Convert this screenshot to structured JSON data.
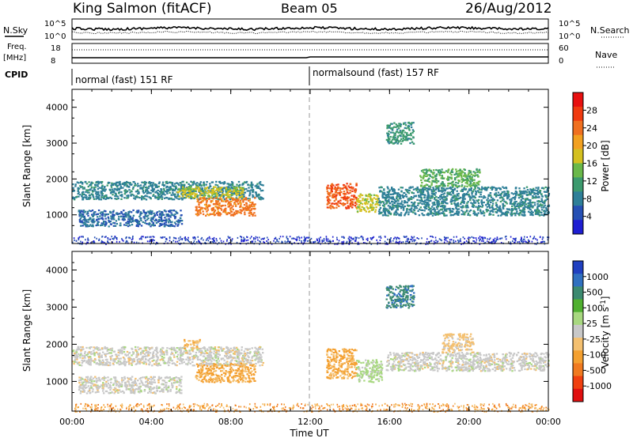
{
  "header": {
    "station": "King Salmon (fitACF)",
    "beam": "Beam 05",
    "date": "26/Aug/2012"
  },
  "status_panel": {
    "nsky_label": "N.Sky",
    "nsky_ticks": [
      "10^5",
      "10^0"
    ],
    "nsearch_label": "N.Search",
    "nsearch_ticks": [
      "10^5",
      "10^0"
    ],
    "freq_label": "Freq.",
    "freq_unit": "[MHz]",
    "freq_ticks": [
      "18",
      "8"
    ],
    "nave_label": "Nave",
    "nave_ticks": [
      "60",
      "0"
    ],
    "cpid_label": "CPID",
    "cpid_segments": [
      {
        "label": "normal (fast) 151 RF",
        "start_hour": 0,
        "end_hour": 12
      },
      {
        "label": "normalsound (fast) 157 RF",
        "start_hour": 12,
        "end_hour": 24
      }
    ]
  },
  "colors": {
    "power_scale": [
      "#1e1ed2",
      "#2650b4",
      "#2e7f98",
      "#3c9a6e",
      "#6ab84a",
      "#d4c020",
      "#f2a020",
      "#f07020",
      "#f03a10",
      "#e81010"
    ],
    "velocity_scale": [
      "#2040c0",
      "#3070c0",
      "#3c8a70",
      "#50b030",
      "#a8d880",
      "#c8c8c8",
      "#f4c070",
      "#f4a030",
      "#f07a20",
      "#f04010",
      "#e01010"
    ],
    "ground_scatter": "#c8c8c8"
  },
  "chart_data": [
    {
      "type": "heatmap",
      "title": "",
      "xlabel": "",
      "ylabel": "Slant Range [km]",
      "x_range_hours": [
        0,
        24
      ],
      "ylim": [
        200,
        4500
      ],
      "yticks": [
        "4000",
        "3000",
        "2000",
        "1000"
      ],
      "colorbar": {
        "label": "Power [dB]",
        "ticks": [
          "28",
          "24",
          "20",
          "16",
          "12",
          "8",
          "4"
        ],
        "range": [
          0,
          30
        ]
      },
      "echo_regions": [
        {
          "start_hour": 0.0,
          "end_hour": 9.6,
          "range_low_km": 1450,
          "range_high_km": 1950,
          "power_db": 8
        },
        {
          "start_hour": 5.2,
          "end_hour": 8.6,
          "range_low_km": 1500,
          "range_high_km": 1800,
          "power_db": 16
        },
        {
          "start_hour": 6.2,
          "end_hour": 9.2,
          "range_low_km": 1000,
          "range_high_km": 1500,
          "power_db": 22
        },
        {
          "start_hour": 0.3,
          "end_hour": 5.5,
          "range_low_km": 700,
          "range_high_km": 1150,
          "power_db": 6
        },
        {
          "start_hour": 12.8,
          "end_hour": 14.3,
          "range_low_km": 1200,
          "range_high_km": 1900,
          "power_db": 24
        },
        {
          "start_hour": 14.3,
          "end_hour": 15.4,
          "range_low_km": 1100,
          "range_high_km": 1600,
          "power_db": 16
        },
        {
          "start_hour": 15.4,
          "end_hour": 24.0,
          "range_low_km": 1000,
          "range_high_km": 1800,
          "power_db": 8
        },
        {
          "start_hour": 15.8,
          "end_hour": 17.2,
          "range_low_km": 3000,
          "range_high_km": 3600,
          "power_db": 10
        },
        {
          "start_hour": 17.5,
          "end_hour": 20.5,
          "range_low_km": 1800,
          "range_high_km": 2300,
          "power_db": 12
        }
      ]
    },
    {
      "type": "heatmap",
      "title": "",
      "xlabel": "Time UT",
      "ylabel": "Slant Range [km]",
      "x_range_hours": [
        0,
        24
      ],
      "ylim": [
        200,
        4500
      ],
      "yticks": [
        "4000",
        "3000",
        "2000",
        "1000"
      ],
      "xticks": [
        "00:00",
        "04:00",
        "08:00",
        "12:00",
        "16:00",
        "20:00",
        "00:00"
      ],
      "colorbar": {
        "label": "Velocity [m s^-1]",
        "ticks": [
          "1000",
          "500",
          "100",
          "25",
          "-25",
          "-100",
          "-500",
          "-1000"
        ],
        "range": [
          -1000,
          1000
        ]
      },
      "echo_regions": [
        {
          "start_hour": 0.0,
          "end_hour": 9.6,
          "range_low_km": 1450,
          "range_high_km": 1950,
          "velocity_ms": 0
        },
        {
          "start_hour": 6.2,
          "end_hour": 9.2,
          "range_low_km": 1000,
          "range_high_km": 1500,
          "velocity_ms": -300
        },
        {
          "start_hour": 5.6,
          "end_hour": 6.4,
          "range_low_km": 1900,
          "range_high_km": 2150,
          "velocity_ms": -200
        },
        {
          "start_hour": 0.3,
          "end_hour": 5.5,
          "range_low_km": 700,
          "range_high_km": 1150,
          "velocity_ms": 0
        },
        {
          "start_hour": 12.8,
          "end_hour": 14.3,
          "range_low_km": 1100,
          "range_high_km": 1900,
          "velocity_ms": -300
        },
        {
          "start_hour": 14.3,
          "end_hour": 15.6,
          "range_low_km": 1000,
          "range_high_km": 1600,
          "velocity_ms": 150
        },
        {
          "start_hour": 15.8,
          "end_hour": 24.0,
          "range_low_km": 1300,
          "range_high_km": 1800,
          "velocity_ms": 0
        },
        {
          "start_hour": 15.8,
          "end_hour": 17.2,
          "range_low_km": 3000,
          "range_high_km": 3600,
          "velocity_ms": 600
        },
        {
          "start_hour": 18.6,
          "end_hour": 20.2,
          "range_low_km": 1800,
          "range_high_km": 2300,
          "velocity_ms": -150
        }
      ]
    }
  ]
}
